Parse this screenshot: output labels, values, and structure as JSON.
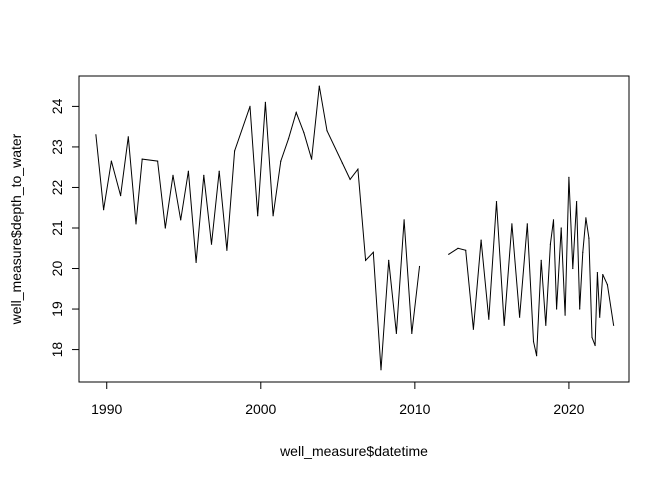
{
  "chart_data": {
    "type": "line",
    "title": "",
    "xlabel": "well_measure$datetime",
    "ylabel": "well_measure$depth_to_water",
    "xlim": [
      1988.2,
      2023.9
    ],
    "ylim": [
      17.2,
      24.75
    ],
    "x_ticks": [
      1990,
      2000,
      2010,
      2020
    ],
    "x_tick_labels": [
      "1990",
      "2000",
      "2010",
      "2020"
    ],
    "y_ticks": [
      18,
      19,
      20,
      21,
      22,
      23,
      24
    ],
    "y_tick_labels": [
      "18",
      "19",
      "20",
      "21",
      "22",
      "23",
      "24"
    ],
    "grid": false,
    "legend": "none",
    "line_color": "#000000",
    "series": [
      {
        "segments": [
          {
            "x": [
              1989.3,
              1989.8,
              1990.3,
              1990.9,
              1991.4,
              1991.9,
              1992.3,
              1993.3,
              1993.8,
              1994.3,
              1994.8,
              1995.3,
              1995.8,
              1996.3,
              1996.8,
              1997.3,
              1997.8,
              1998.3,
              1999.3,
              1999.8,
              2000.3,
              2000.8,
              2001.3,
              2001.8,
              2002.3,
              2002.8,
              2003.3,
              2003.8,
              2004.3,
              2005.3,
              2005.8,
              2006.3,
              2006.8,
              2007.3,
              2007.8,
              2008.3,
              2008.8,
              2009.3,
              2009.8,
              2010.3
            ],
            "y": [
              23.3,
              21.45,
              22.65,
              21.8,
              23.25,
              21.1,
              22.7,
              22.65,
              21.0,
              22.3,
              21.2,
              22.4,
              20.15,
              22.3,
              20.6,
              22.4,
              20.45,
              22.9,
              24.0,
              21.3,
              24.1,
              21.3,
              22.65,
              23.2,
              23.85,
              23.35,
              22.7,
              24.5,
              23.4,
              22.6,
              22.2,
              22.45,
              20.2,
              20.4,
              17.5,
              20.2,
              18.4,
              21.2,
              18.4,
              20.05
            ]
          },
          {
            "x": [
              2012.2,
              2012.8,
              2013.3,
              2013.8,
              2014.3,
              2014.8,
              2015.3,
              2015.8,
              2016.3,
              2016.8,
              2017.3,
              2017.7,
              2017.9,
              2018.2,
              2018.5,
              2018.8,
              2019.0,
              2019.2,
              2019.5,
              2019.75,
              2020.0,
              2020.25,
              2020.5,
              2020.7,
              2020.9,
              2021.1,
              2021.3,
              2021.5,
              2021.7,
              2021.85,
              2022.0,
              2022.2,
              2022.5,
              2022.9
            ],
            "y": [
              20.35,
              20.5,
              20.45,
              18.5,
              20.7,
              18.75,
              21.65,
              18.6,
              21.1,
              18.8,
              21.1,
              18.2,
              17.85,
              20.2,
              18.6,
              20.6,
              21.2,
              19.0,
              21.0,
              18.85,
              22.25,
              20.0,
              21.65,
              19.0,
              20.4,
              21.25,
              20.75,
              18.3,
              18.1,
              19.9,
              18.8,
              19.85,
              19.6,
              18.6
            ]
          }
        ]
      }
    ]
  }
}
